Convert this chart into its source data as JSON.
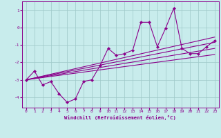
{
  "xlabel": "Windchill (Refroidissement éolien,°C)",
  "background_color": "#c8ecec",
  "grid_color": "#9ec8c8",
  "line_color": "#8b008b",
  "spine_color": "#8b008b",
  "xlim": [
    -0.5,
    23.5
  ],
  "ylim": [
    -4.6,
    1.5
  ],
  "xticks": [
    0,
    1,
    2,
    3,
    4,
    5,
    6,
    7,
    8,
    9,
    10,
    11,
    12,
    13,
    14,
    15,
    16,
    17,
    18,
    19,
    20,
    21,
    22,
    23
  ],
  "yticks": [
    -4,
    -3,
    -2,
    -1,
    0,
    1
  ],
  "main_x": [
    0,
    1,
    2,
    3,
    4,
    5,
    6,
    7,
    8,
    9,
    10,
    11,
    12,
    13,
    14,
    15,
    16,
    17,
    18,
    19,
    20,
    21,
    22,
    23
  ],
  "main_y": [
    -3.0,
    -2.5,
    -3.3,
    -3.1,
    -3.8,
    -4.3,
    -4.1,
    -3.1,
    -3.0,
    -2.2,
    -1.2,
    -1.6,
    -1.5,
    -1.3,
    0.3,
    0.3,
    -1.1,
    -0.05,
    1.1,
    -1.2,
    -1.5,
    -1.5,
    -1.1,
    -0.75
  ],
  "trend_lines": [
    {
      "x": [
        0,
        23
      ],
      "y": [
        -3.0,
        -0.55
      ]
    },
    {
      "x": [
        0,
        23
      ],
      "y": [
        -3.0,
        -0.85
      ]
    },
    {
      "x": [
        0,
        23
      ],
      "y": [
        -3.0,
        -1.2
      ]
    },
    {
      "x": [
        0,
        23
      ],
      "y": [
        -3.0,
        -1.55
      ]
    }
  ]
}
